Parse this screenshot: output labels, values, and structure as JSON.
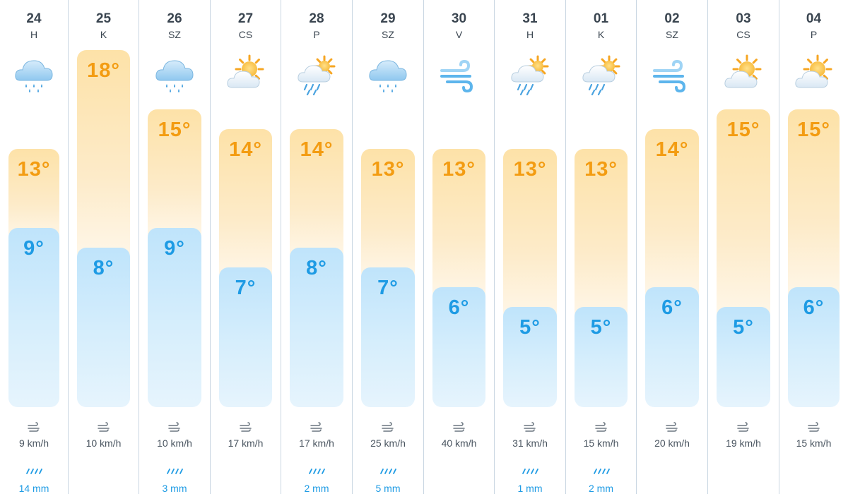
{
  "days": [
    {
      "date": "24",
      "dow": "H",
      "icon": "rain-cloud-icon",
      "high": "13°",
      "low": "9°",
      "high_c": 13,
      "low_c": 9,
      "wind": "9 km/h",
      "rain": "14 mm"
    },
    {
      "date": "25",
      "dow": "K",
      "icon": "sun-behind-cloud-icon",
      "high": "18°",
      "low": "8°",
      "high_c": 18,
      "low_c": 8,
      "wind": "10 km/h",
      "rain": null
    },
    {
      "date": "26",
      "dow": "SZ",
      "icon": "rain-cloud-icon",
      "high": "15°",
      "low": "9°",
      "high_c": 15,
      "low_c": 9,
      "wind": "10 km/h",
      "rain": "3 mm"
    },
    {
      "date": "27",
      "dow": "CS",
      "icon": "sun-behind-cloud-icon",
      "high": "14°",
      "low": "7°",
      "high_c": 14,
      "low_c": 7,
      "wind": "17 km/h",
      "rain": null
    },
    {
      "date": "28",
      "dow": "P",
      "icon": "sun-rain-cloud-icon",
      "high": "14°",
      "low": "8°",
      "high_c": 14,
      "low_c": 8,
      "wind": "17 km/h",
      "rain": "2 mm"
    },
    {
      "date": "29",
      "dow": "SZ",
      "icon": "rain-cloud-icon",
      "high": "13°",
      "low": "7°",
      "high_c": 13,
      "low_c": 7,
      "wind": "25 km/h",
      "rain": "5 mm"
    },
    {
      "date": "30",
      "dow": "V",
      "icon": "wind-icon",
      "high": "13°",
      "low": "6°",
      "high_c": 13,
      "low_c": 6,
      "wind": "40 km/h",
      "rain": null
    },
    {
      "date": "31",
      "dow": "H",
      "icon": "sun-rain-cloud-icon",
      "high": "13°",
      "low": "5°",
      "high_c": 13,
      "low_c": 5,
      "wind": "31 km/h",
      "rain": "1 mm"
    },
    {
      "date": "01",
      "dow": "K",
      "icon": "sun-rain-cloud-icon",
      "high": "13°",
      "low": "5°",
      "high_c": 13,
      "low_c": 5,
      "wind": "15 km/h",
      "rain": "2 mm"
    },
    {
      "date": "02",
      "dow": "SZ",
      "icon": "wind-icon",
      "high": "14°",
      "low": "6°",
      "high_c": 14,
      "low_c": 6,
      "wind": "20 km/h",
      "rain": null
    },
    {
      "date": "03",
      "dow": "CS",
      "icon": "sun-behind-cloud-icon",
      "high": "15°",
      "low": "5°",
      "high_c": 15,
      "low_c": 5,
      "wind": "19 km/h",
      "rain": null
    },
    {
      "date": "04",
      "dow": "P",
      "icon": "sun-behind-cloud-icon",
      "high": "15°",
      "low": "6°",
      "high_c": 15,
      "low_c": 6,
      "wind": "15 km/h",
      "rain": null
    }
  ],
  "colors": {
    "high_text": "#f39c12",
    "low_text": "#1e9be4",
    "rain_text": "#1e9be4",
    "divider": "#c9d6e2"
  }
}
